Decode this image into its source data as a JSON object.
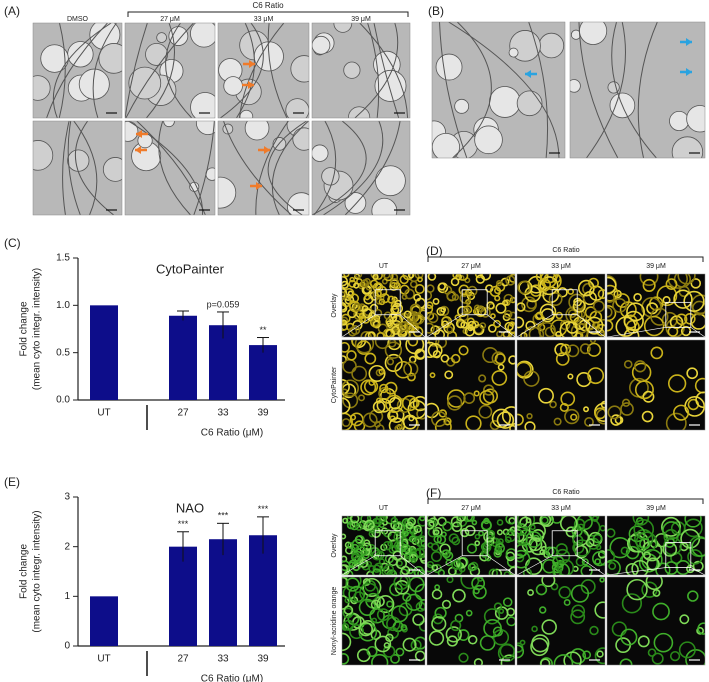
{
  "panels": {
    "A": {
      "label": "(A)",
      "group_label": "C6 Ratio",
      "columns": [
        "DMSO",
        "27 μM",
        "33 μM",
        "39 μM"
      ]
    },
    "B": {
      "label": "(B)"
    },
    "D": {
      "label": "(D)",
      "group_label": "C6 Ratio",
      "columns": [
        "UT",
        "27 μM",
        "33 μM",
        "39 μM"
      ],
      "rows": [
        "Overlay",
        "CytoPainter"
      ]
    },
    "F": {
      "label": "(F)",
      "group_label": "C6 Ratio",
      "columns": [
        "UT",
        "27 μM",
        "33 μM",
        "39 μM"
      ],
      "rows": [
        "Overlay",
        "Nonyl-acridine orange"
      ]
    }
  },
  "chart_data": [
    {
      "type": "bar",
      "panel_label": "(C)",
      "title": "CytoPainter",
      "ylabel": [
        "Fold change",
        "(mean cyto integr. intensity)"
      ],
      "xlabel": "C6 Ratio (μM)",
      "categories": [
        "UT",
        "27",
        "33",
        "39"
      ],
      "values": [
        1.0,
        0.89,
        0.79,
        0.58
      ],
      "errors": [
        null,
        0.05,
        0.14,
        0.08
      ],
      "annotations": [
        null,
        null,
        "p=0.059",
        "**"
      ],
      "color": "#0d0d8a",
      "ylim": [
        0,
        1.5
      ],
      "yticks": [
        {
          "value": 0,
          "label": "0.0"
        },
        {
          "value": 0.5,
          "label": "0.5"
        },
        {
          "value": 1,
          "label": "1.0"
        },
        {
          "value": 1.5,
          "label": "1.5"
        }
      ]
    },
    {
      "type": "bar",
      "panel_label": "(E)",
      "title": "NAO",
      "ylabel": [
        "Fold change",
        "(mean cyto integr. intensity)"
      ],
      "xlabel": "C6 Ratio (μM)",
      "categories": [
        "UT",
        "27",
        "33",
        "39"
      ],
      "values": [
        1.0,
        2.0,
        2.15,
        2.23
      ],
      "errors": [
        null,
        0.3,
        0.32,
        0.37
      ],
      "annotations": [
        null,
        "***",
        "***",
        "***"
      ],
      "color": "#0d0d8a",
      "ylim": [
        0,
        3
      ],
      "yticks": [
        0,
        1,
        2,
        3
      ]
    }
  ]
}
